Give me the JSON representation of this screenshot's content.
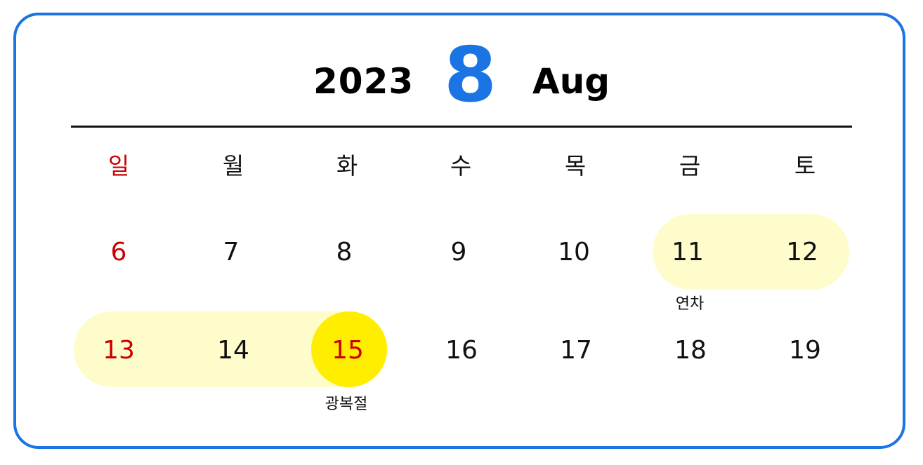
{
  "header": {
    "year": "2023",
    "month_number": "8",
    "month_name": "Aug"
  },
  "weekdays": [
    "일",
    "월",
    "화",
    "수",
    "목",
    "금",
    "토"
  ],
  "weeks": [
    [
      "6",
      "7",
      "8",
      "9",
      "10",
      "11",
      "12"
    ],
    [
      "13",
      "14",
      "15",
      "16",
      "17",
      "18",
      "19"
    ]
  ],
  "notes": {
    "annual_leave": "연차",
    "liberation_day": "광복절"
  },
  "colors": {
    "border": "#1b74e4",
    "month_accent": "#1b74e4",
    "sunday_holiday": "#cc0000",
    "highlight_range": "#fffccc",
    "holiday_circle": "#ffee00",
    "text": "#111111"
  }
}
